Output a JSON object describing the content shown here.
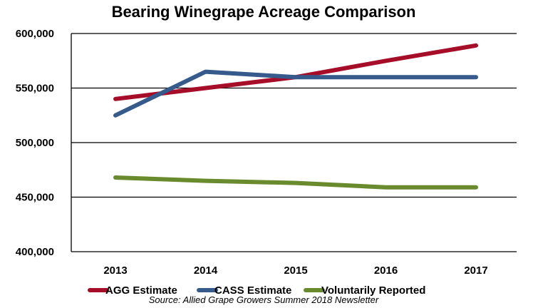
{
  "chart_data": {
    "type": "line",
    "title": "Bearing Winegrape Acreage Comparison",
    "xlabel": "",
    "ylabel": "",
    "categories": [
      "2013",
      "2014",
      "2015",
      "2016",
      "2017"
    ],
    "ylim": [
      400000,
      600000
    ],
    "yticks": [
      400000,
      450000,
      500000,
      550000,
      600000
    ],
    "ytick_labels": [
      "400,000",
      "450,000",
      "500,000",
      "550,000",
      "600,000"
    ],
    "grid": true,
    "legend_position": "bottom",
    "series": [
      {
        "name": "AGG Estimate",
        "color": "#A50D29",
        "values": [
          540000,
          550000,
          560000,
          575000,
          589000
        ]
      },
      {
        "name": "CASS Estimate",
        "color": "#375A8C",
        "values": [
          525000,
          565000,
          560000,
          560000,
          560000
        ]
      },
      {
        "name": "Voluntarily Reported",
        "color": "#6A8A2E",
        "values": [
          468000,
          465000,
          463000,
          459000,
          459000
        ]
      }
    ],
    "source_note": "Source: Allied Grape Growers Summer 2018 Newsletter"
  }
}
